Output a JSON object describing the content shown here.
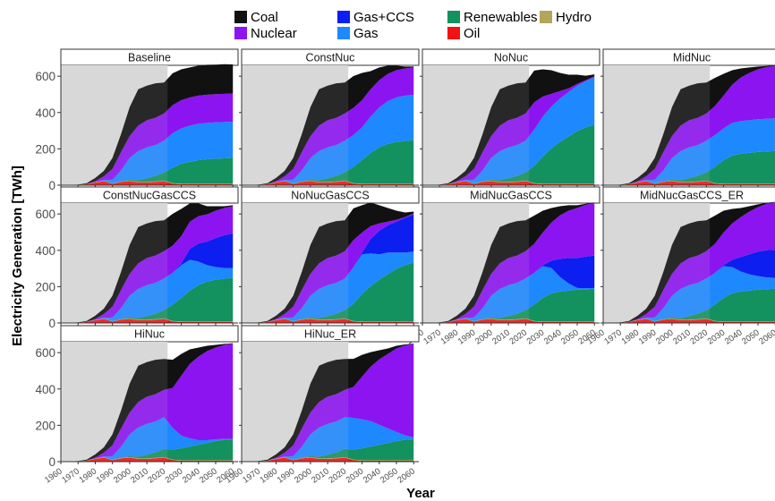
{
  "chart_data": {
    "type": "area",
    "stacked": true,
    "xlabel": "Year",
    "ylabel": "Electricity Generation [TWh]",
    "xlim": [
      1960,
      2063
    ],
    "ylim": [
      0,
      660
    ],
    "x_ticks": [
      "1960",
      "1970",
      "1980",
      "1990",
      "2000",
      "2010",
      "2020",
      "2030",
      "2040",
      "2050",
      "2060"
    ],
    "y_ticks": [
      "0",
      "200",
      "400",
      "600"
    ],
    "historical_shading_end": 2022,
    "legend_position": "top",
    "stack_order_bottom_to_top": [
      "Oil",
      "Hydro",
      "Renewables",
      "Gas",
      "Gas+CCS",
      "Nuclear",
      "Coal"
    ],
    "legend": [
      {
        "name": "Coal",
        "color": "#111111"
      },
      {
        "name": "Nuclear",
        "color": "#8b14f0"
      },
      {
        "name": "Gas+CCS",
        "color": "#0c1ef0"
      },
      {
        "name": "Gas",
        "color": "#1e88ff"
      },
      {
        "name": "Renewables",
        "color": "#13915e"
      },
      {
        "name": "Oil",
        "color": "#f21212"
      },
      {
        "name": "Hydro",
        "color": "#b3a55a"
      }
    ],
    "x": [
      1960,
      1965,
      1970,
      1975,
      1980,
      1985,
      1990,
      1995,
      2000,
      2005,
      2010,
      2015,
      2020,
      2025,
      2030,
      2035,
      2040,
      2045,
      2050,
      2055,
      2060
    ],
    "historical": {
      "Oil": [
        0,
        1,
        2,
        5,
        15,
        22,
        8,
        18,
        22,
        15,
        15,
        18,
        22
      ],
      "Hydro": [
        0,
        0,
        0,
        1,
        2,
        2,
        2,
        2,
        3,
        3,
        3,
        3,
        3
      ],
      "Renewables": [
        0,
        0,
        0,
        0,
        0,
        0,
        0,
        2,
        5,
        10,
        20,
        30,
        45
      ],
      "Gas": [
        0,
        0,
        0,
        0,
        0,
        5,
        20,
        60,
        120,
        160,
        170,
        170,
        175
      ],
      "Nuclear": [
        0,
        0,
        0,
        0,
        5,
        20,
        60,
        100,
        120,
        140,
        150,
        150,
        150
      ],
      "Coal": [
        0,
        0,
        1,
        5,
        18,
        30,
        60,
        100,
        160,
        200,
        190,
        190,
        170
      ]
    },
    "panels": [
      {
        "title": "Baseline",
        "future": {
          "Oil": [
            22,
            8,
            5,
            5,
            5,
            5,
            5,
            5,
            5
          ],
          "Hydro": [
            3,
            3,
            3,
            3,
            3,
            3,
            3,
            3,
            3
          ],
          "Renewables": [
            45,
            85,
            110,
            120,
            130,
            135,
            138,
            140,
            142
          ],
          "Gas": [
            175,
            190,
            195,
            200,
            200,
            200,
            200,
            200,
            200
          ],
          "Gas+CCS": [
            0,
            0,
            0,
            0,
            0,
            0,
            0,
            0,
            0
          ],
          "Nuclear": [
            150,
            155,
            155,
            155,
            155,
            155,
            155,
            155,
            155
          ],
          "Coal": [
            170,
            175,
            170,
            165,
            165,
            165,
            163,
            163,
            160
          ]
        }
      },
      {
        "title": "ConstNuc",
        "future": {
          "Oil": [
            22,
            8,
            5,
            5,
            5,
            5,
            5,
            5,
            5
          ],
          "Hydro": [
            3,
            3,
            3,
            3,
            3,
            3,
            3,
            3,
            3
          ],
          "Renewables": [
            45,
            90,
            130,
            170,
            200,
            220,
            230,
            235,
            240
          ],
          "Gas": [
            175,
            175,
            180,
            200,
            220,
            235,
            245,
            250,
            250
          ],
          "Gas+CCS": [
            0,
            0,
            0,
            0,
            0,
            0,
            0,
            0,
            0
          ],
          "Nuclear": [
            150,
            150,
            150,
            150,
            150,
            150,
            150,
            150,
            150
          ],
          "Coal": [
            170,
            175,
            150,
            100,
            70,
            45,
            25,
            10,
            5
          ]
        }
      },
      {
        "title": "NoNuc",
        "future": {
          "Oil": [
            22,
            8,
            5,
            5,
            5,
            5,
            5,
            5,
            5
          ],
          "Hydro": [
            3,
            3,
            3,
            3,
            3,
            3,
            3,
            3,
            3
          ],
          "Renewables": [
            45,
            95,
            150,
            195,
            230,
            260,
            290,
            310,
            325
          ],
          "Gas": [
            175,
            200,
            220,
            230,
            240,
            245,
            250,
            255,
            262
          ],
          "Gas+CCS": [
            0,
            0,
            0,
            0,
            0,
            0,
            0,
            0,
            0
          ],
          "Nuclear": [
            150,
            150,
            110,
            70,
            40,
            20,
            10,
            5,
            5
          ],
          "Coal": [
            170,
            175,
            150,
            130,
            100,
            75,
            50,
            25,
            10
          ]
        }
      },
      {
        "title": "MidNuc",
        "future": {
          "Oil": [
            22,
            8,
            5,
            5,
            5,
            5,
            5,
            5,
            5
          ],
          "Hydro": [
            3,
            3,
            3,
            3,
            3,
            3,
            3,
            3,
            3
          ],
          "Renewables": [
            45,
            90,
            130,
            155,
            165,
            170,
            175,
            178,
            180
          ],
          "Gas": [
            175,
            175,
            175,
            180,
            180,
            180,
            180,
            180,
            180
          ],
          "Gas+CCS": [
            0,
            0,
            0,
            0,
            0,
            0,
            0,
            0,
            0
          ],
          "Nuclear": [
            150,
            160,
            180,
            210,
            240,
            260,
            275,
            285,
            290
          ],
          "Coal": [
            170,
            155,
            120,
            80,
            50,
            30,
            15,
            5,
            2
          ]
        }
      },
      {
        "title": "ConstNucGasCCS",
        "future": {
          "Oil": [
            22,
            8,
            5,
            5,
            5,
            5,
            5,
            5,
            5
          ],
          "Hydro": [
            3,
            3,
            3,
            3,
            3,
            3,
            3,
            3,
            3
          ],
          "Renewables": [
            45,
            90,
            130,
            170,
            200,
            220,
            230,
            235,
            240
          ],
          "Gas": [
            175,
            175,
            180,
            170,
            130,
            90,
            70,
            60,
            55
          ],
          "Gas+CCS": [
            0,
            0,
            10,
            60,
            100,
            130,
            160,
            180,
            190
          ],
          "Nuclear": [
            150,
            150,
            150,
            150,
            150,
            150,
            150,
            150,
            150
          ],
          "Coal": [
            170,
            175,
            150,
            100,
            70,
            45,
            25,
            10,
            5
          ]
        }
      },
      {
        "title": "NoNucGasCCS",
        "future": {
          "Oil": [
            22,
            8,
            5,
            5,
            5,
            5,
            5,
            5,
            5
          ],
          "Hydro": [
            3,
            3,
            3,
            3,
            3,
            3,
            3,
            3,
            3
          ],
          "Renewables": [
            45,
            95,
            150,
            195,
            230,
            260,
            290,
            310,
            325
          ],
          "Gas": [
            175,
            200,
            220,
            180,
            140,
            120,
            90,
            70,
            60
          ],
          "Gas+CCS": [
            0,
            0,
            10,
            80,
            130,
            150,
            170,
            190,
            205
          ],
          "Nuclear": [
            150,
            150,
            110,
            70,
            40,
            20,
            10,
            5,
            5
          ],
          "Coal": [
            170,
            175,
            150,
            130,
            100,
            75,
            50,
            25,
            10
          ]
        }
      },
      {
        "title": "MidNucGasCCS",
        "future": {
          "Oil": [
            22,
            8,
            5,
            5,
            5,
            5,
            5,
            5,
            5
          ],
          "Hydro": [
            3,
            3,
            3,
            3,
            3,
            3,
            3,
            3,
            3
          ],
          "Renewables": [
            45,
            90,
            130,
            155,
            165,
            170,
            175,
            178,
            180
          ],
          "Gas": [
            175,
            175,
            175,
            140,
            80,
            40,
            10,
            5,
            5
          ],
          "Gas+CCS": [
            0,
            0,
            5,
            40,
            100,
            140,
            165,
            175,
            178
          ],
          "Nuclear": [
            150,
            160,
            180,
            210,
            240,
            260,
            275,
            285,
            290
          ],
          "Coal": [
            170,
            155,
            120,
            80,
            50,
            30,
            15,
            5,
            2
          ]
        }
      },
      {
        "title": "MidNucGasCCS_ER",
        "future": {
          "Oil": [
            22,
            8,
            5,
            5,
            5,
            5,
            5,
            5,
            5
          ],
          "Hydro": [
            3,
            3,
            3,
            3,
            3,
            3,
            3,
            3,
            3
          ],
          "Renewables": [
            45,
            90,
            130,
            155,
            165,
            170,
            175,
            178,
            180
          ],
          "Gas": [
            175,
            175,
            175,
            145,
            110,
            90,
            75,
            65,
            60
          ],
          "Gas+CCS": [
            0,
            0,
            5,
            40,
            80,
            110,
            135,
            150,
            155
          ],
          "Nuclear": [
            150,
            160,
            180,
            200,
            220,
            235,
            245,
            255,
            262
          ],
          "Coal": [
            170,
            155,
            120,
            80,
            50,
            30,
            15,
            5,
            2
          ]
        }
      },
      {
        "title": "HiNuc",
        "future": {
          "Oil": [
            22,
            8,
            5,
            5,
            5,
            5,
            5,
            5,
            5
          ],
          "Hydro": [
            3,
            3,
            3,
            3,
            3,
            3,
            3,
            3,
            3
          ],
          "Renewables": [
            45,
            55,
            65,
            75,
            85,
            95,
            105,
            112,
            115
          ],
          "Gas": [
            175,
            120,
            70,
            45,
            25,
            15,
            10,
            5,
            2
          ],
          "Gas+CCS": [
            0,
            0,
            0,
            0,
            0,
            0,
            0,
            0,
            0
          ],
          "Nuclear": [
            150,
            220,
            330,
            410,
            460,
            490,
            505,
            518,
            525
          ],
          "Coal": [
            170,
            155,
            120,
            80,
            50,
            30,
            15,
            5,
            2
          ]
        }
      },
      {
        "title": "HiNuc_ER",
        "future": {
          "Oil": [
            22,
            8,
            5,
            5,
            5,
            5,
            5,
            5,
            5
          ],
          "Hydro": [
            3,
            3,
            3,
            3,
            3,
            3,
            3,
            3,
            3
          ],
          "Renewables": [
            45,
            55,
            65,
            75,
            85,
            95,
            105,
            112,
            115
          ],
          "Gas": [
            175,
            175,
            160,
            140,
            110,
            80,
            50,
            25,
            10
          ],
          "Gas+CCS": [
            0,
            0,
            0,
            0,
            0,
            0,
            0,
            0,
            0
          ],
          "Nuclear": [
            150,
            170,
            235,
            300,
            360,
            410,
            460,
            495,
            515
          ],
          "Coal": [
            170,
            155,
            120,
            80,
            50,
            30,
            15,
            5,
            2
          ]
        }
      }
    ]
  }
}
